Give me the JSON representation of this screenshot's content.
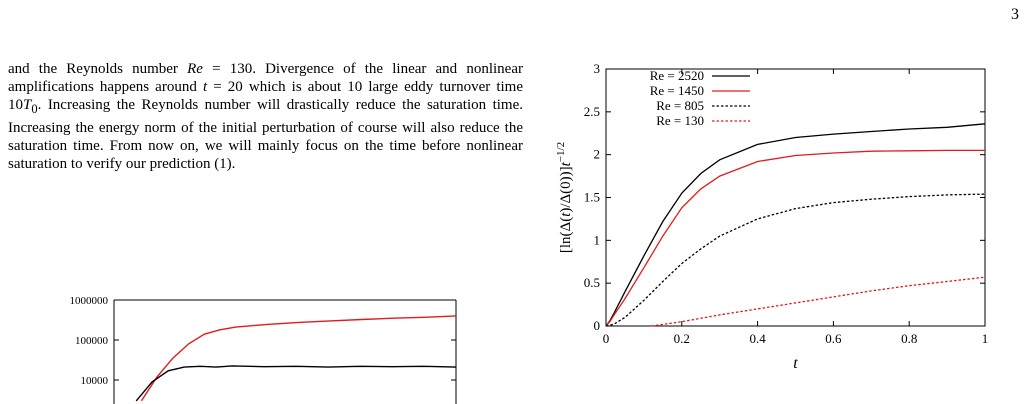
{
  "page": {
    "number": "3"
  },
  "text": {
    "p1": "and the Reynolds number ",
    "re_sym": "Re",
    "p2": " = 130. Divergence of the linear and nonlinear amplifications happens around ",
    "t_sym": "t",
    "p3": " = 20 which is about 10 large eddy turnover time 10",
    "T_sym": "T",
    "T_sub": "0",
    "p4": ". Increasing the Reynolds number will drastically reduce the saturation time. Increasing the energy norm of the initial perturbation of course will also reduce the saturation time. From now on, we will mainly focus on the time before nonlinear saturation to verify our prediction (1)."
  },
  "chart_data": [
    {
      "type": "line",
      "xlabel": "t",
      "ylabel": "[ln(Δ(t)/Δ(0))]t^{-1/2}",
      "xlim": [
        0,
        1
      ],
      "ylim": [
        0,
        3
      ],
      "xticks": [
        "0",
        "0.2",
        "0.4",
        "0.6",
        "0.8",
        "1"
      ],
      "yticks": [
        "0",
        "0.5",
        "1",
        "1.5",
        "2",
        "2.5",
        "3"
      ],
      "legend_position": "top-left",
      "series": [
        {
          "name": "Re = 2520",
          "color": "#000000",
          "dashed": false,
          "x": [
            0,
            0.01,
            0.02,
            0.05,
            0.1,
            0.15,
            0.2,
            0.25,
            0.3,
            0.4,
            0.5,
            0.6,
            0.7,
            0.8,
            0.9,
            1.0
          ],
          "y": [
            0,
            0.06,
            0.14,
            0.4,
            0.82,
            1.22,
            1.55,
            1.78,
            1.94,
            2.12,
            2.2,
            2.24,
            2.27,
            2.3,
            2.32,
            2.36
          ]
        },
        {
          "name": "Re = 1450",
          "color": "#e41a1c",
          "dashed": false,
          "x": [
            0,
            0.01,
            0.02,
            0.05,
            0.1,
            0.15,
            0.2,
            0.25,
            0.3,
            0.4,
            0.5,
            0.6,
            0.7,
            0.8,
            0.9,
            1.0
          ],
          "y": [
            0,
            0.05,
            0.12,
            0.32,
            0.68,
            1.05,
            1.38,
            1.6,
            1.75,
            1.92,
            1.99,
            2.02,
            2.04,
            2.045,
            2.05,
            2.05
          ]
        },
        {
          "name": "Re = 805",
          "color": "#000000",
          "dashed": true,
          "x": [
            0,
            0.02,
            0.05,
            0.1,
            0.15,
            0.2,
            0.25,
            0.3,
            0.4,
            0.5,
            0.6,
            0.7,
            0.8,
            0.9,
            1.0
          ],
          "y": [
            0,
            0.02,
            0.1,
            0.3,
            0.52,
            0.73,
            0.9,
            1.05,
            1.25,
            1.37,
            1.44,
            1.48,
            1.51,
            1.53,
            1.54
          ]
        },
        {
          "name": "Re = 130",
          "color": "#e41a1c",
          "dashed": true,
          "x": [
            0.12,
            0.2,
            0.3,
            0.4,
            0.5,
            0.6,
            0.7,
            0.8,
            0.9,
            1.0
          ],
          "y": [
            0,
            0.05,
            0.13,
            0.2,
            0.27,
            0.34,
            0.41,
            0.47,
            0.52,
            0.57
          ]
        }
      ]
    },
    {
      "type": "line",
      "y_scale": "log",
      "yticks": [
        "1000000",
        "100000",
        "10000"
      ],
      "series": [
        {
          "color": "#e41a1c",
          "x": [
            0,
            0.05,
            0.1,
            0.15,
            0.2,
            0.25,
            0.3,
            0.4,
            0.5,
            0.6,
            0.7,
            0.8,
            0.9,
            1.0
          ],
          "y": [
            3000,
            12000,
            35000,
            80000,
            140000,
            180000,
            210000,
            245000,
            275000,
            300000,
            325000,
            350000,
            370000,
            400000
          ]
        },
        {
          "color": "#000000",
          "x": [
            0,
            0.05,
            0.1,
            0.15,
            0.2,
            0.25,
            0.3,
            0.4,
            0.5,
            0.6,
            0.7,
            0.8,
            0.9,
            1.0
          ],
          "y": [
            3000,
            9000,
            17000,
            21000,
            22000,
            21000,
            22500,
            21500,
            22000,
            21000,
            22000,
            21500,
            22000,
            21000
          ]
        }
      ]
    }
  ]
}
